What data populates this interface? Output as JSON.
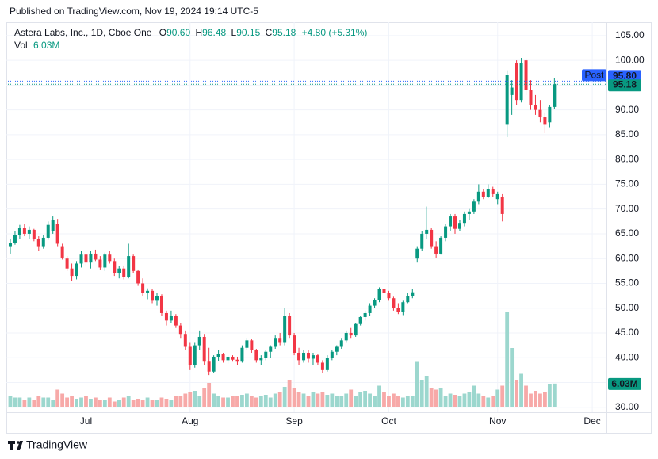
{
  "chart_data": {
    "type": "candlestick",
    "publisher": "Published on TradingView.com, Nov 19, 2024 19:14 UTC-5",
    "title": "Astera Labs, Inc., 1D, Cboe One",
    "ohlc_keys": [
      "O",
      "H",
      "L",
      "C"
    ],
    "last_labels": [
      "90.60",
      "96.48",
      "90.15",
      "95.18"
    ],
    "change_label": "+4.80 (+5.31%)",
    "volume_name": "Vol",
    "volume_label": "6.03M",
    "post": {
      "name": "Post",
      "value": 95.8,
      "label": "95.80"
    },
    "footer": "TradingView",
    "up_color": "#089981",
    "down_color": "#f23645",
    "volume_up_color": "#9cd7ce",
    "volume_down_color": "#f7a9a8",
    "post_color": "#2962ff",
    "ylim": [
      29,
      107.7
    ],
    "yticks": [
      {
        "value": 30,
        "label": "30.00"
      },
      {
        "value": 35,
        "label": "35.00"
      },
      {
        "value": 40,
        "label": "40.00"
      },
      {
        "value": 45,
        "label": "45.00"
      },
      {
        "value": 50,
        "label": "50.00"
      },
      {
        "value": 55,
        "label": "55.00"
      },
      {
        "value": 60,
        "label": "60.00"
      },
      {
        "value": 65,
        "label": "65.00"
      },
      {
        "value": 70,
        "label": "70.00"
      },
      {
        "value": 75,
        "label": "75.00"
      },
      {
        "value": 80,
        "label": "80.00"
      },
      {
        "value": 85,
        "label": "85.00"
      },
      {
        "value": 90,
        "label": "90.00"
      },
      {
        "value": 95,
        "label": "95.00"
      },
      {
        "value": 100,
        "label": "100.00"
      },
      {
        "value": 105,
        "label": "105.00"
      }
    ],
    "xlim": [
      -0.5,
      126
    ],
    "xticks": [
      {
        "value": 16,
        "label": "Jul"
      },
      {
        "value": 38,
        "label": "Aug"
      },
      {
        "value": 60,
        "label": "Sep"
      },
      {
        "value": 80,
        "label": "Oct"
      },
      {
        "value": 103,
        "label": "Nov"
      },
      {
        "value": 123,
        "label": "Dec"
      }
    ],
    "grid": true,
    "ohlc": [
      [
        62.5,
        64,
        61,
        63.2
      ],
      [
        63.2,
        65.5,
        62.8,
        64.8
      ],
      [
        64.8,
        66.8,
        64,
        66.2
      ],
      [
        66.2,
        67,
        64.5,
        65
      ],
      [
        65,
        66.5,
        64,
        65.8
      ],
      [
        65.8,
        66,
        63.5,
        64
      ],
      [
        64,
        64.5,
        61.5,
        62.5
      ],
      [
        62.5,
        64.8,
        62,
        64.2
      ],
      [
        64.2,
        67.5,
        63.8,
        66.8
      ],
      [
        65.5,
        68.5,
        65,
        67.8
      ],
      [
        67,
        68,
        62.5,
        63
      ],
      [
        62.5,
        63,
        59.8,
        60.2
      ],
      [
        60,
        60.5,
        57.5,
        58
      ],
      [
        58,
        59,
        55.5,
        56.5
      ],
      [
        56.5,
        59.5,
        55.8,
        59
      ],
      [
        59,
        61.5,
        58.2,
        60.8
      ],
      [
        60.8,
        61,
        58.5,
        59.2
      ],
      [
        59.2,
        61.5,
        58,
        61
      ],
      [
        61,
        61.8,
        59.5,
        59.8
      ],
      [
        59.8,
        60.5,
        57.8,
        58.2
      ],
      [
        58.2,
        61.2,
        57.5,
        60.8
      ],
      [
        60.8,
        61.5,
        59,
        59.5
      ],
      [
        59.5,
        60,
        56.5,
        57
      ],
      [
        57,
        58.5,
        56,
        58
      ],
      [
        58,
        58.6,
        55.8,
        56.3
      ],
      [
        56.3,
        63,
        56,
        60.5
      ],
      [
        60.5,
        60.8,
        57,
        57.5
      ],
      [
        57.5,
        57.8,
        54.5,
        55
      ],
      [
        55,
        56,
        52.5,
        53
      ],
      [
        53,
        54,
        51.8,
        53.5
      ],
      [
        53.5,
        53.8,
        51,
        51.5
      ],
      [
        51.5,
        53,
        50.5,
        52.5
      ],
      [
        52.5,
        52.8,
        48.5,
        49
      ],
      [
        49,
        49.5,
        46.5,
        47.5
      ],
      [
        47.5,
        49.5,
        47,
        48.5
      ],
      [
        48.5,
        48.8,
        46,
        46.5
      ],
      [
        46.5,
        47,
        44,
        44.8
      ],
      [
        44.8,
        45.5,
        41.5,
        42.2
      ],
      [
        42.2,
        43,
        37.5,
        38.5
      ],
      [
        38.5,
        43,
        38,
        42.5
      ],
      [
        42.5,
        45.5,
        41.5,
        44.2
      ],
      [
        44.2,
        44.8,
        38.5,
        39.2
      ],
      [
        39.2,
        42,
        36.5,
        37.2
      ],
      [
        37.2,
        40.5,
        37,
        40.2
      ],
      [
        40.2,
        41.5,
        39.3,
        40.8
      ],
      [
        40.8,
        41,
        39,
        39.5
      ],
      [
        39.5,
        40.5,
        38.8,
        40.2
      ],
      [
        40.2,
        40.5,
        39.2,
        39.6
      ],
      [
        39.6,
        40.2,
        38.5,
        39.2
      ],
      [
        39.2,
        42.5,
        39,
        42
      ],
      [
        42,
        44,
        41.5,
        43.5
      ],
      [
        43.5,
        43.8,
        41,
        41.5
      ],
      [
        41.5,
        41.8,
        39,
        39.5
      ],
      [
        39.5,
        40.5,
        38.5,
        40
      ],
      [
        40,
        41.5,
        39.5,
        41.2
      ],
      [
        41.2,
        42.5,
        40,
        42.2
      ],
      [
        42.2,
        44.5,
        41.8,
        44
      ],
      [
        44,
        45,
        42.5,
        43
      ],
      [
        43,
        50,
        42.5,
        48.5
      ],
      [
        48.5,
        49,
        44,
        44.5
      ],
      [
        44.5,
        45,
        40.5,
        41
      ],
      [
        41,
        42,
        38.5,
        39.5
      ],
      [
        39.5,
        41.5,
        39,
        41
      ],
      [
        41,
        41.5,
        39,
        39.8
      ],
      [
        39.8,
        41,
        38.5,
        40.5
      ],
      [
        40.5,
        40.8,
        38.5,
        39
      ],
      [
        39,
        39.5,
        37,
        37.5
      ],
      [
        37.5,
        40.5,
        37.2,
        40
      ],
      [
        40,
        41.5,
        39.5,
        41.2
      ],
      [
        41.2,
        42.5,
        40.5,
        42.2
      ],
      [
        42.2,
        44,
        41.8,
        43.5
      ],
      [
        43.5,
        45.5,
        43,
        45
      ],
      [
        45,
        46,
        44,
        44.5
      ],
      [
        44.5,
        47,
        44.2,
        46.8
      ],
      [
        46.8,
        48.5,
        46.5,
        48.2
      ],
      [
        48.2,
        49.5,
        47.5,
        49
      ],
      [
        49,
        51,
        48.5,
        50.5
      ],
      [
        50.5,
        52,
        50,
        51.6
      ],
      [
        51.6,
        54.2,
        51.2,
        53.8
      ],
      [
        53.8,
        55.3,
        52.5,
        53
      ],
      [
        53,
        53.5,
        51.5,
        52
      ],
      [
        52,
        52.3,
        49.5,
        50
      ],
      [
        50,
        51,
        48.8,
        49.2
      ],
      [
        49.2,
        51.5,
        48.6,
        51.2
      ],
      [
        51.2,
        53,
        51,
        52.5
      ],
      [
        52.5,
        53.8,
        52,
        53.2
      ],
      [
        60,
        62.5,
        59.2,
        62
      ],
      [
        62,
        65.5,
        61.5,
        65
      ],
      [
        65,
        70.5,
        64,
        65.8
      ],
      [
        65.8,
        66.2,
        62,
        62.5
      ],
      [
        62.5,
        63.5,
        60.2,
        61
      ],
      [
        61,
        64.5,
        60.8,
        64.2
      ],
      [
        64.2,
        67,
        63.5,
        66.5
      ],
      [
        66.5,
        69,
        65.5,
        68.5
      ],
      [
        68.5,
        69,
        65,
        66
      ],
      [
        66,
        67.8,
        65.5,
        67.2
      ],
      [
        67.2,
        69.5,
        66.5,
        69
      ],
      [
        69,
        70,
        67.8,
        69.5
      ],
      [
        69.5,
        72,
        69,
        71.5
      ],
      [
        71.5,
        75,
        71,
        73.5
      ],
      [
        73.5,
        74,
        72,
        72.5
      ],
      [
        72.5,
        75,
        72.2,
        74
      ],
      [
        74,
        74.5,
        72.5,
        73
      ],
      [
        72,
        73.5,
        71,
        73
      ],
      [
        72.5,
        73,
        67.5,
        69
      ],
      [
        87,
        98,
        84.5,
        97
      ],
      [
        93,
        96,
        89,
        94.5
      ],
      [
        99.5,
        100,
        91,
        92
      ],
      [
        92,
        100.5,
        91.5,
        99.5
      ],
      [
        100,
        100.4,
        93,
        94
      ],
      [
        94,
        96,
        90,
        91
      ],
      [
        91,
        93,
        89,
        90
      ],
      [
        90,
        92,
        87.5,
        88.5
      ],
      [
        88.5,
        89.5,
        85.3,
        87
      ],
      [
        87.5,
        91,
        86.5,
        90.6
      ],
      [
        90.6,
        96.48,
        90.15,
        95.18
      ]
    ],
    "volume": [
      3,
      2.5,
      2.5,
      2,
      2.5,
      2,
      3,
      2.5,
      2.5,
      2,
      4.5,
      3.5,
      2.5,
      3,
      2.2,
      2.5,
      3,
      2.2,
      2.5,
      2,
      1.8,
      2.5,
      1.5,
      2,
      2.5,
      2.8,
      2,
      2.2,
      1.8,
      2.5,
      2,
      1.8,
      2.5,
      2.2,
      2,
      2.8,
      3,
      3.5,
      4,
      4.2,
      3,
      5,
      6.2,
      3.5,
      3,
      2.5,
      2.5,
      2.8,
      3,
      3.2,
      3.5,
      3,
      2.5,
      2.8,
      3.2,
      2.5,
      3.5,
      4,
      5.2,
      7,
      5,
      4,
      3.5,
      3,
      3.8,
      3.5,
      4,
      3.2,
      3.5,
      2.8,
      3,
      3.5,
      4.5,
      3,
      3.8,
      4.2,
      3.5,
      3,
      5.5,
      4,
      3,
      3.5,
      2.8,
      2.5,
      3,
      3,
      11.5,
      7,
      8,
      5,
      4.5,
      4.8,
      3,
      3.5,
      3.2,
      2.8,
      3.5,
      4,
      5.5,
      3.5,
      3,
      2.5,
      3,
      4.5,
      5.5,
      24,
      15,
      7,
      8.5,
      5.5,
      3.5,
      4.2,
      3.5,
      3.8,
      6,
      6.03
    ]
  }
}
